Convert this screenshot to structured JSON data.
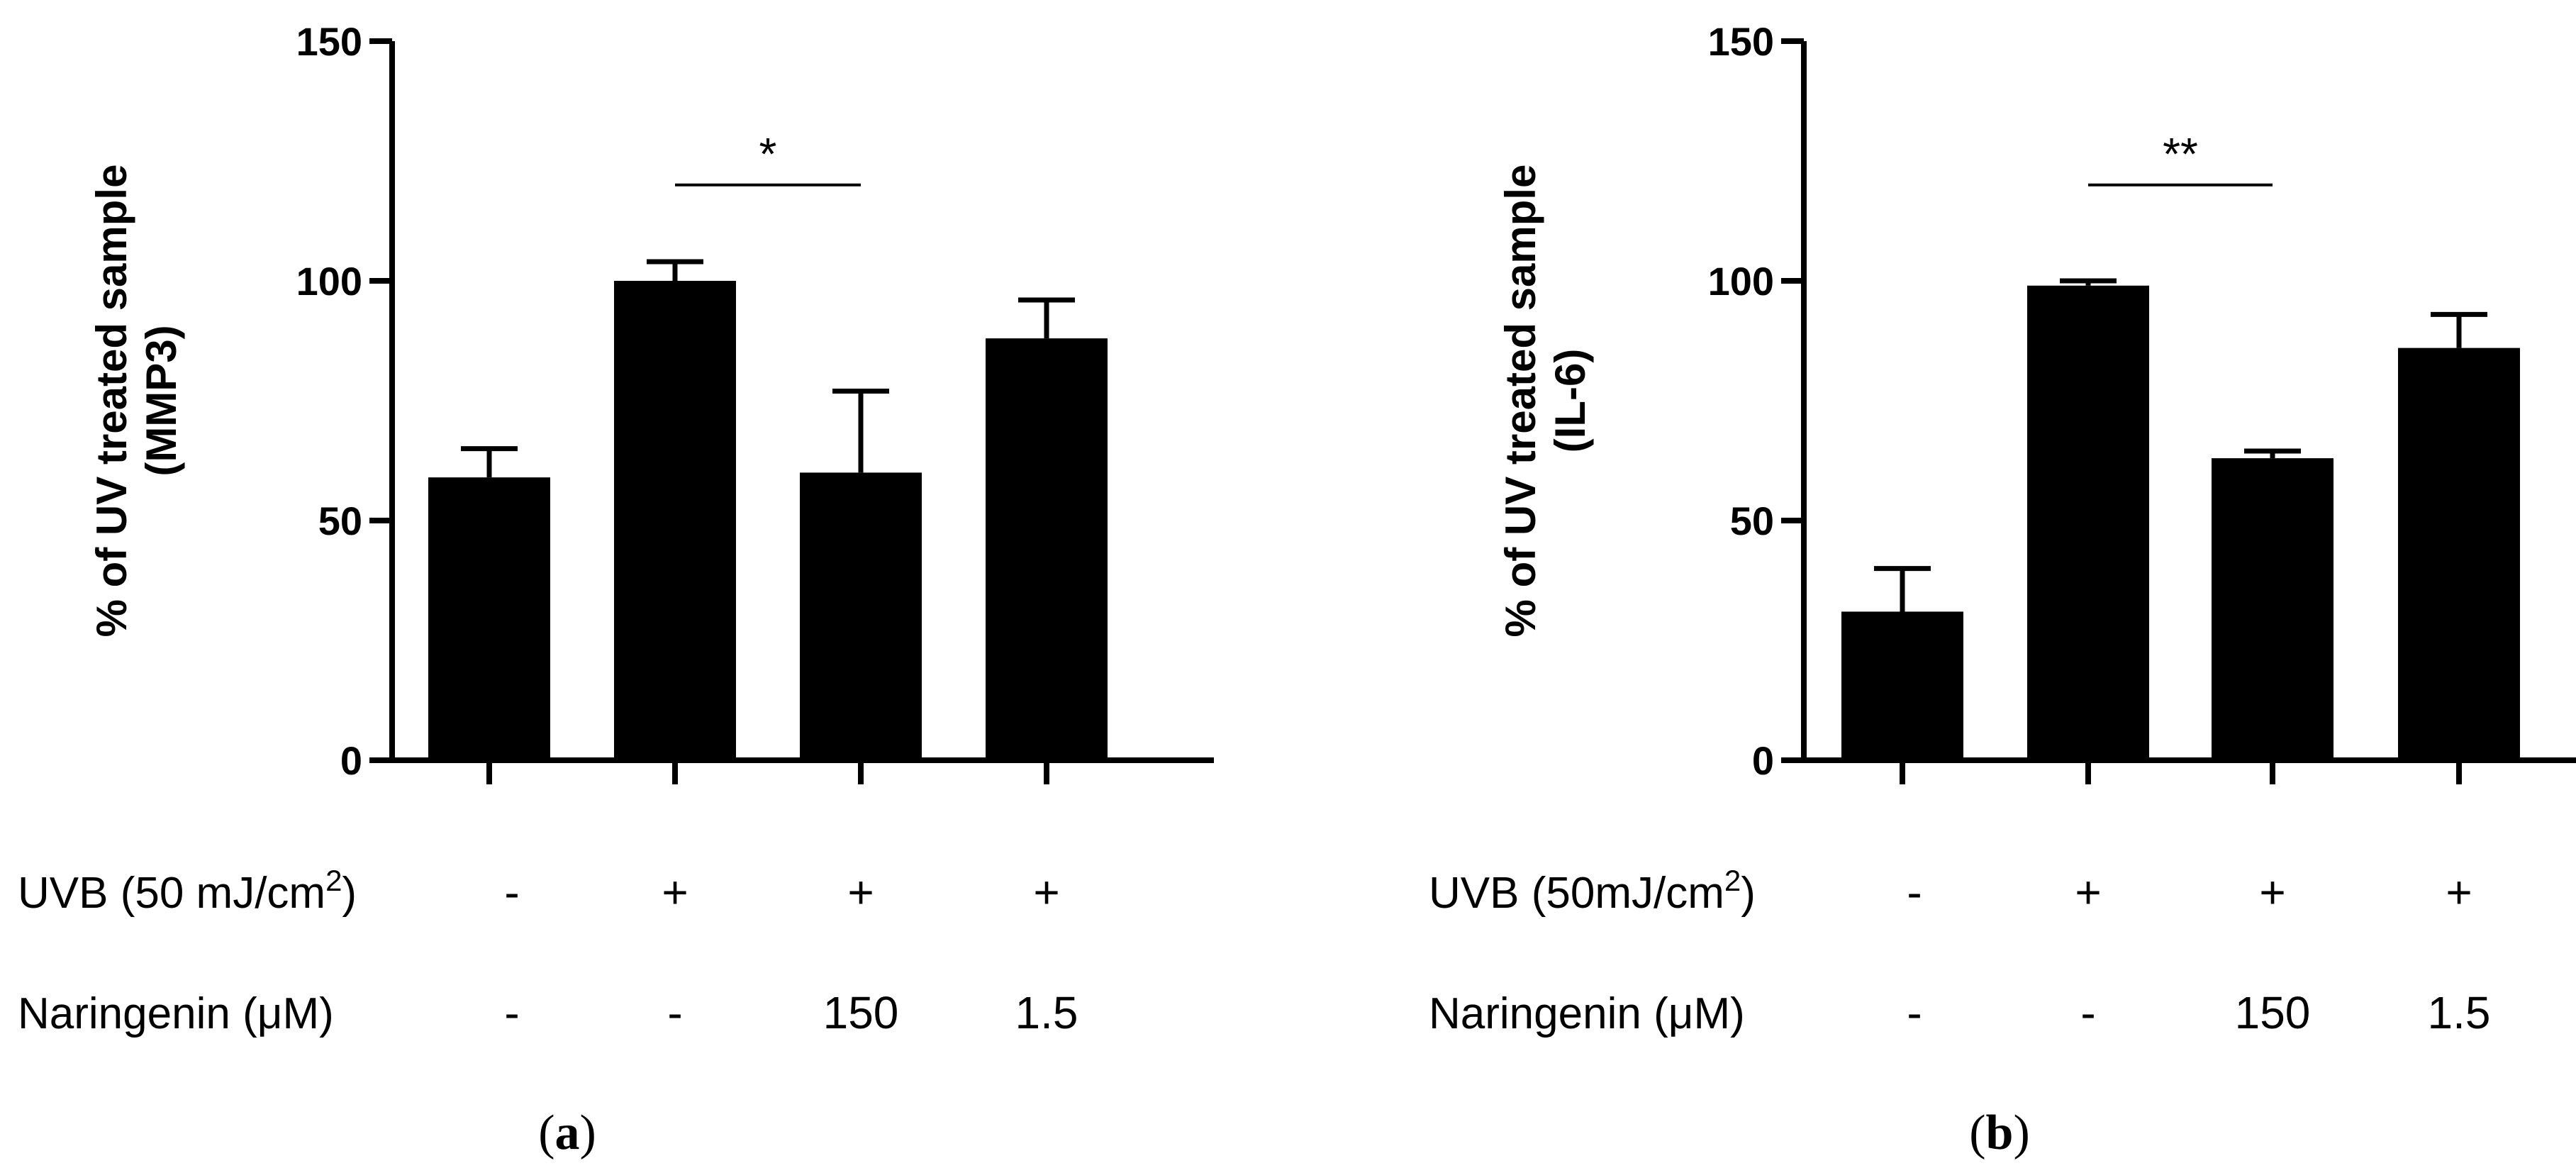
{
  "chart_data": [
    {
      "type": "bar",
      "panel_label": "a",
      "ylabel_line1": "% of UV treated sample",
      "ylabel_line2": "(MMP3)",
      "ylim": [
        0,
        150
      ],
      "yticks": [
        "0",
        "50",
        "100",
        "150"
      ],
      "ytick_values": [
        0,
        50,
        100,
        150
      ],
      "values": [
        59,
        100,
        60,
        88
      ],
      "errors": [
        6,
        4,
        17,
        8
      ],
      "bar_color": "#000000",
      "significance": {
        "from": 1,
        "to": 2,
        "text": "*"
      },
      "conditions": [
        {
          "label": "UVB (50 mJ/cm",
          "sup": "2",
          "suffix": ")",
          "values": [
            "-",
            "+",
            "+",
            "+"
          ]
        },
        {
          "label": "Naringenin (μM)",
          "sup": "",
          "suffix": "",
          "values": [
            "-",
            "-",
            "150",
            "1.5"
          ]
        }
      ]
    },
    {
      "type": "bar",
      "panel_label": "b",
      "ylabel_line1": "% of UV treated sample",
      "ylabel_line2": "(IL-6)",
      "ylim": [
        0,
        150
      ],
      "yticks": [
        "0",
        "50",
        "100",
        "150"
      ],
      "ytick_values": [
        0,
        50,
        100,
        150
      ],
      "values": [
        31,
        99,
        63,
        86
      ],
      "errors": [
        9,
        1,
        1.5,
        7
      ],
      "bar_color": "#000000",
      "significance": {
        "from": 1,
        "to": 2,
        "text": "**"
      },
      "conditions": [
        {
          "label": "UVB (50mJ/cm",
          "sup": "2",
          "suffix": ")",
          "values": [
            "-",
            "+",
            "+",
            "+"
          ]
        },
        {
          "label": "Naringenin (μM)",
          "sup": "",
          "suffix": "",
          "values": [
            "-",
            "-",
            "150",
            "1.5"
          ]
        }
      ]
    }
  ]
}
